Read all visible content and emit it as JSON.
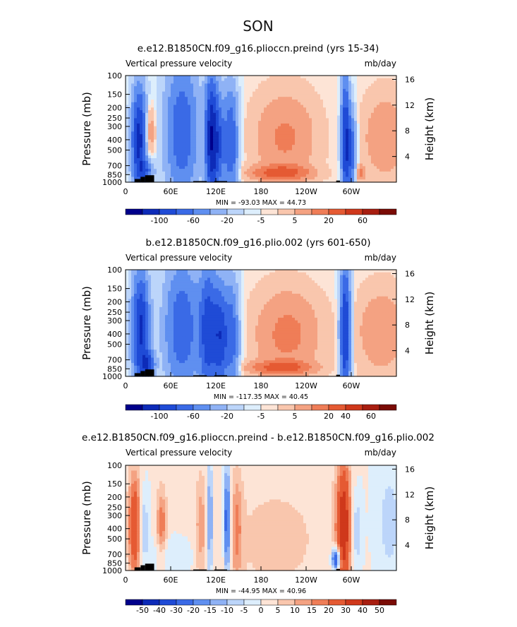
{
  "page_title": "SON",
  "chart_data": [
    {
      "type": "heatmap",
      "title": "e.e12.B1850CN.f09_g16.plioccn.preind (yrs 15-34)",
      "left_label": "Vertical pressure velocity",
      "right_label": "mb/day",
      "ylabel": "Pressure (mb)",
      "ylabel_right": "Height (km)",
      "xticks": [
        "0",
        "60E",
        "120E",
        "180",
        "120W",
        "60W"
      ],
      "xtick_lon": [
        0,
        60,
        120,
        180,
        240,
        300
      ],
      "xlim": [
        0,
        360
      ],
      "yticks": [
        "100",
        "150",
        "200",
        "250",
        "300",
        "400",
        "500",
        "700",
        "850",
        "1000"
      ],
      "ytick_values": [
        100,
        150,
        200,
        250,
        300,
        400,
        500,
        700,
        850,
        1000
      ],
      "ylim": [
        1000,
        100
      ],
      "height_ticks": [
        "16",
        "12",
        "8",
        "4"
      ],
      "height_values": [
        16,
        12,
        8,
        4
      ],
      "stats": "MIN = -93.03   MAX =  44.73",
      "colorbar_labels": [
        "-100",
        "-60",
        "-20",
        "-5",
        "5",
        "20",
        "60"
      ],
      "colorbar_colors": [
        "#00008b",
        "#0d2bb8",
        "#1f4bd6",
        "#3a6ae6",
        "#5f8ff0",
        "#8fb2f5",
        "#bcd5fa",
        "#ddeefc",
        "#fde4d6",
        "#f9c6ad",
        "#f4a282",
        "#ef7d57",
        "#e55a33",
        "#cf381b",
        "#a81e10",
        "#7a0b05"
      ],
      "features": [
        {
          "lon": 18,
          "p": 400,
          "w": 7,
          "h": 320,
          "val": -90
        },
        {
          "lon": 32,
          "p": 340,
          "w": 5,
          "h": 130,
          "val": 30
        },
        {
          "lon": 28,
          "p": 780,
          "w": 7,
          "h": 120,
          "val": -40
        },
        {
          "lon": 75,
          "p": 330,
          "w": 16,
          "h": 360,
          "val": -55
        },
        {
          "lon": 113,
          "p": 380,
          "w": 5,
          "h": 380,
          "val": -80
        },
        {
          "lon": 122,
          "p": 420,
          "w": 6,
          "h": 330,
          "val": -65
        },
        {
          "lon": 140,
          "p": 420,
          "w": 7,
          "h": 360,
          "val": -60
        },
        {
          "lon": 212,
          "p": 380,
          "w": 30,
          "h": 270,
          "val": 28
        },
        {
          "lon": 205,
          "p": 820,
          "w": 28,
          "h": 90,
          "val": 42
        },
        {
          "lon": 292,
          "p": 380,
          "w": 4,
          "h": 380,
          "val": -75
        },
        {
          "lon": 300,
          "p": 500,
          "w": 5,
          "h": 300,
          "val": -55
        },
        {
          "lon": 345,
          "p": 380,
          "w": 22,
          "h": 260,
          "val": 24
        },
        {
          "lon": 312,
          "p": 820,
          "w": 4,
          "h": 90,
          "val": 35
        }
      ]
    },
    {
      "type": "heatmap",
      "title": "b.e12.B1850CN.f09_g16.plio.002 (yrs 601-650)",
      "left_label": "Vertical pressure velocity",
      "right_label": "mb/day",
      "ylabel": "Pressure (mb)",
      "ylabel_right": "Height (km)",
      "xticks": [
        "0",
        "60E",
        "120E",
        "180",
        "120W",
        "60W"
      ],
      "xtick_lon": [
        0,
        60,
        120,
        180,
        240,
        300
      ],
      "xlim": [
        0,
        360
      ],
      "yticks": [
        "100",
        "150",
        "200",
        "250",
        "300",
        "400",
        "500",
        "700",
        "850",
        "1000"
      ],
      "ytick_values": [
        100,
        150,
        200,
        250,
        300,
        400,
        500,
        700,
        850,
        1000
      ],
      "ylim": [
        1000,
        100
      ],
      "height_ticks": [
        "16",
        "12",
        "8",
        "4"
      ],
      "height_values": [
        16,
        12,
        8,
        4
      ],
      "stats": "MIN = -117.35   MAX =  40.45",
      "colorbar_labels": [
        "-100",
        "-60",
        "-20",
        "-5",
        "5",
        "20",
        "40",
        "60"
      ],
      "colorbar_colors": [
        "#00008b",
        "#0d2bb8",
        "#1f4bd6",
        "#3a6ae6",
        "#5f8ff0",
        "#8fb2f5",
        "#bcd5fa",
        "#ddeefc",
        "#fde4d6",
        "#f9c6ad",
        "#f4a282",
        "#ef7d57",
        "#e55a33",
        "#cf381b",
        "#a81e10",
        "#7a0b05"
      ],
      "features": [
        {
          "lon": 20,
          "p": 360,
          "w": 8,
          "h": 320,
          "val": -85
        },
        {
          "lon": 30,
          "p": 780,
          "w": 6,
          "h": 150,
          "val": -60
        },
        {
          "lon": 75,
          "p": 350,
          "w": 17,
          "h": 360,
          "val": -55
        },
        {
          "lon": 110,
          "p": 380,
          "w": 8,
          "h": 380,
          "val": -70
        },
        {
          "lon": 125,
          "p": 420,
          "w": 6,
          "h": 330,
          "val": -60
        },
        {
          "lon": 140,
          "p": 420,
          "w": 8,
          "h": 360,
          "val": -55
        },
        {
          "lon": 215,
          "p": 400,
          "w": 32,
          "h": 280,
          "val": 30
        },
        {
          "lon": 205,
          "p": 830,
          "w": 30,
          "h": 80,
          "val": 40
        },
        {
          "lon": 292,
          "p": 380,
          "w": 5,
          "h": 400,
          "val": -85
        },
        {
          "lon": 340,
          "p": 380,
          "w": 24,
          "h": 260,
          "val": 24
        }
      ]
    },
    {
      "type": "heatmap",
      "title": "e.e12.B1850CN.f09_g16.plioccn.preind - b.e12.B1850CN.f09_g16.plio.002",
      "left_label": "Vertical pressure velocity",
      "right_label": "mb/day",
      "ylabel": "Pressure (mb)",
      "ylabel_right": "Height (km)",
      "xticks": [
        "0",
        "60E",
        "120E",
        "180",
        "120W",
        "60W"
      ],
      "xtick_lon": [
        0,
        60,
        120,
        180,
        240,
        300
      ],
      "xlim": [
        0,
        360
      ],
      "yticks": [
        "100",
        "150",
        "200",
        "250",
        "300",
        "400",
        "500",
        "700",
        "850",
        "1000"
      ],
      "ytick_values": [
        100,
        150,
        200,
        250,
        300,
        400,
        500,
        700,
        850,
        1000
      ],
      "ylim": [
        1000,
        100
      ],
      "height_ticks": [
        "16",
        "12",
        "8",
        "4"
      ],
      "height_values": [
        16,
        12,
        8,
        4
      ],
      "stats": "MIN = -44.95   MAX =  40.96",
      "colorbar_labels": [
        "-50",
        "-40",
        "-30",
        "-20",
        "-15",
        "-10",
        "-5",
        "0",
        "5",
        "10",
        "15",
        "20",
        "30",
        "40",
        "50"
      ],
      "colorbar_colors": [
        "#00008b",
        "#0d2bb8",
        "#1f4bd6",
        "#3a6ae6",
        "#5f8ff0",
        "#8fb2f5",
        "#bcd5fa",
        "#ddeefc",
        "#fde4d6",
        "#f9c6ad",
        "#f4a282",
        "#ef7d57",
        "#e55a33",
        "#cf381b",
        "#a81e10",
        "#7a0b05"
      ],
      "features": [
        {
          "lon": 12,
          "p": 380,
          "w": 6,
          "h": 320,
          "val": 30
        },
        {
          "lon": 24,
          "p": 380,
          "w": 4,
          "h": 200,
          "val": -12
        },
        {
          "lon": 48,
          "p": 360,
          "w": 5,
          "h": 200,
          "val": 18
        },
        {
          "lon": 100,
          "p": 380,
          "w": 5,
          "h": 300,
          "val": 12
        },
        {
          "lon": 112,
          "p": 330,
          "w": 3,
          "h": 280,
          "val": -20
        },
        {
          "lon": 135,
          "p": 340,
          "w": 3,
          "h": 300,
          "val": -30
        },
        {
          "lon": 148,
          "p": 400,
          "w": 5,
          "h": 320,
          "val": 14
        },
        {
          "lon": 290,
          "p": 380,
          "w": 7,
          "h": 380,
          "val": 38
        },
        {
          "lon": 280,
          "p": 780,
          "w": 4,
          "h": 140,
          "val": -40
        },
        {
          "lon": 306,
          "p": 420,
          "w": 6,
          "h": 260,
          "val": -12
        },
        {
          "lon": 60,
          "p": 720,
          "w": 22,
          "h": 200,
          "val": -6
        },
        {
          "lon": 200,
          "p": 500,
          "w": 70,
          "h": 700,
          "val": 6
        },
        {
          "lon": 350,
          "p": 350,
          "w": 14,
          "h": 400,
          "val": -7
        }
      ]
    }
  ]
}
